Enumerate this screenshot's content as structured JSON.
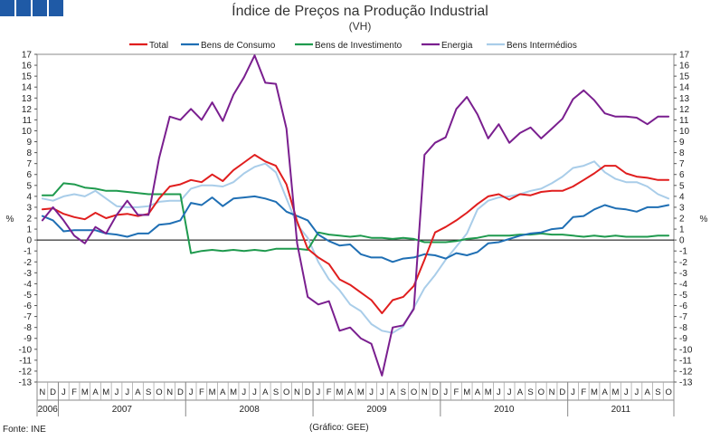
{
  "colors": {
    "Total": "#e01e1e",
    "Bens de Consumo": "#1f6fb4",
    "Bens de Investimento": "#1f9a4e",
    "Energia": "#7a1f8f",
    "Bens Intermédios": "#a9cde9",
    "logo": "#1f5aa6"
  },
  "chart_data": {
    "type": "line",
    "title": "Índice de Preços na Produção Industrial",
    "subtitle": "(VH)",
    "ylabel": "%",
    "ylabel_right": "%",
    "ylim": [
      -13,
      17
    ],
    "yticks": [
      "17",
      "16",
      "15",
      "14",
      "13",
      "12",
      "11",
      "10",
      "9",
      "8",
      "7",
      "6",
      "5",
      "4",
      "3",
      "2",
      "1",
      "0",
      "-1",
      "-2",
      "-3",
      "-4",
      "-5",
      "-6",
      "-7",
      "-8",
      "-9",
      "-10",
      "-11",
      "-12",
      "-13"
    ],
    "month_labels": [
      "N",
      "D",
      "J",
      "F",
      "M",
      "A",
      "M",
      "J",
      "J",
      "A",
      "S",
      "O",
      "N",
      "D",
      "J",
      "F",
      "M",
      "A",
      "M",
      "J",
      "J",
      "A",
      "S",
      "O",
      "N",
      "D",
      "J",
      "F",
      "M",
      "A",
      "M",
      "J",
      "J",
      "A",
      "S",
      "O",
      "N",
      "D",
      "J",
      "F",
      "M",
      "A",
      "M",
      "J",
      "J",
      "A",
      "S",
      "O",
      "N",
      "D",
      "J",
      "F",
      "M",
      "A",
      "M",
      "J",
      "J",
      "A",
      "S",
      "O"
    ],
    "years": [
      {
        "label": "2006",
        "months": 2
      },
      {
        "label": "2007",
        "months": 12
      },
      {
        "label": "2008",
        "months": 12
      },
      {
        "label": "2009",
        "months": 12
      },
      {
        "label": "2010",
        "months": 12
      },
      {
        "label": "2011",
        "months": 10
      }
    ],
    "series": [
      {
        "name": "Total",
        "values": [
          2.8,
          2.9,
          2.4,
          2.1,
          1.9,
          2.5,
          2.0,
          2.3,
          2.4,
          2.2,
          2.4,
          3.8,
          4.9,
          5.1,
          5.5,
          5.3,
          6.0,
          5.4,
          6.4,
          7.1,
          7.8,
          7.2,
          6.8,
          5.1,
          1.7,
          -0.8,
          -1.6,
          -2.2,
          -3.6,
          -4.1,
          -4.8,
          -5.5,
          -6.7,
          -5.5,
          -5.2,
          -4.2,
          -1.8,
          0.7,
          1.2,
          1.8,
          2.5,
          3.3,
          4.0,
          4.2,
          3.7,
          4.2,
          4.1,
          4.4,
          4.5,
          4.5,
          4.9,
          5.5,
          6.1,
          6.8,
          6.8,
          6.1,
          5.8,
          5.7,
          5.5,
          5.5
        ]
      },
      {
        "name": "Bens de Consumo",
        "values": [
          2.2,
          1.8,
          0.8,
          0.9,
          0.9,
          0.9,
          0.6,
          0.5,
          0.3,
          0.6,
          0.6,
          1.4,
          1.5,
          1.8,
          3.4,
          3.2,
          3.9,
          3.1,
          3.8,
          3.9,
          4.0,
          3.8,
          3.5,
          2.6,
          2.2,
          1.8,
          0.5,
          -0.1,
          -0.5,
          -0.4,
          -1.3,
          -1.6,
          -1.6,
          -2.0,
          -1.7,
          -1.6,
          -1.3,
          -1.4,
          -1.7,
          -1.2,
          -1.4,
          -1.1,
          -0.3,
          -0.2,
          0.1,
          0.4,
          0.6,
          0.7,
          1.0,
          1.1,
          2.1,
          2.2,
          2.8,
          3.2,
          2.9,
          2.8,
          2.6,
          3.0,
          3.0,
          3.2
        ]
      },
      {
        "name": "Bens de Investimento",
        "values": [
          4.1,
          4.1,
          5.2,
          5.1,
          4.8,
          4.7,
          4.5,
          4.5,
          4.4,
          4.3,
          4.2,
          4.2,
          4.2,
          4.2,
          -1.2,
          -1.0,
          -0.9,
          -1.0,
          -0.9,
          -1.0,
          -0.9,
          -1.0,
          -0.8,
          -0.8,
          -0.8,
          -0.9,
          0.7,
          0.5,
          0.4,
          0.3,
          0.4,
          0.2,
          0.2,
          0.1,
          0.2,
          0.1,
          -0.2,
          -0.2,
          -0.2,
          -0.1,
          0.1,
          0.2,
          0.4,
          0.4,
          0.4,
          0.5,
          0.5,
          0.6,
          0.5,
          0.5,
          0.4,
          0.3,
          0.4,
          0.3,
          0.4,
          0.3,
          0.3,
          0.3,
          0.4,
          0.4
        ]
      },
      {
        "name": "Energia",
        "values": [
          1.8,
          3.0,
          1.8,
          0.4,
          -0.3,
          1.2,
          0.6,
          2.3,
          3.6,
          2.3,
          2.3,
          7.5,
          11.3,
          11.0,
          12.0,
          11.0,
          12.6,
          10.9,
          13.3,
          14.9,
          16.9,
          14.4,
          14.3,
          10.2,
          -0.3,
          -5.2,
          -5.9,
          -5.6,
          -8.3,
          -8.0,
          -9.0,
          -9.5,
          -12.4,
          -8.0,
          -7.8,
          -6.3,
          7.8,
          8.9,
          9.4,
          12.0,
          13.1,
          11.5,
          9.3,
          10.6,
          8.9,
          9.8,
          10.3,
          9.3,
          10.2,
          11.1,
          12.9,
          13.7,
          12.8,
          11.6,
          11.3,
          11.3,
          11.2,
          10.6,
          11.3,
          11.3
        ]
      },
      {
        "name": "Bens Intermédios",
        "values": [
          3.8,
          3.6,
          4.0,
          4.2,
          4.0,
          4.5,
          3.8,
          3.1,
          3.0,
          3.0,
          3.1,
          3.5,
          3.6,
          3.6,
          4.7,
          5.0,
          5.0,
          4.9,
          5.3,
          6.1,
          6.7,
          7.0,
          6.2,
          3.8,
          1.4,
          0.2,
          -2.0,
          -3.6,
          -4.6,
          -5.9,
          -6.5,
          -7.7,
          -8.3,
          -8.5,
          -7.9,
          -6.2,
          -4.4,
          -3.2,
          -1.8,
          -0.6,
          0.6,
          2.8,
          3.6,
          3.9,
          4.0,
          4.2,
          4.5,
          4.7,
          5.2,
          5.8,
          6.6,
          6.8,
          7.2,
          6.2,
          5.6,
          5.3,
          5.3,
          4.9,
          4.2,
          3.8
        ]
      }
    ]
  },
  "footer": {
    "source": "Fonte: INE",
    "credit": "(Gráfico: GEE)"
  }
}
